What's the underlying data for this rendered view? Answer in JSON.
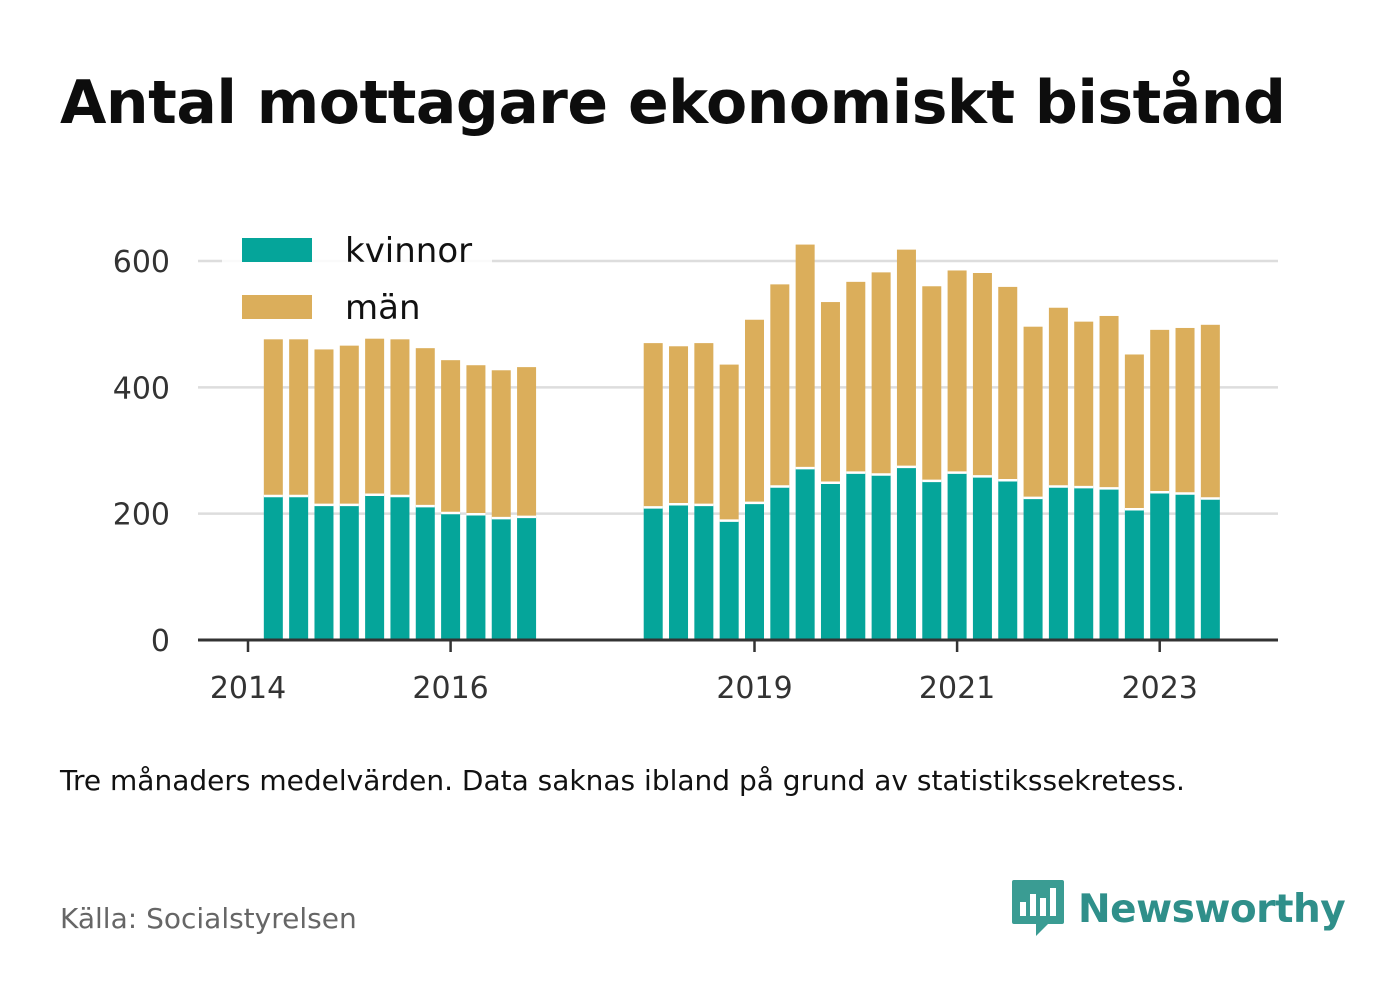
{
  "title": "Antal mottagare ekonomiskt bistånd",
  "note": "Tre månaders medelvärden. Data saknas ibland på grund av statistikssekretess.",
  "source": "Källa: Socialstyrelsen",
  "brand": {
    "name": "Newsworthy",
    "icon": "newsworthy-logo-icon",
    "color": "#2f8f8a"
  },
  "colors": {
    "kvinnor": "#05a59a",
    "man": "#dbae5b",
    "grid": "#dddddd",
    "axis": "#333333"
  },
  "chart_data": {
    "type": "bar",
    "stacked": true,
    "title": "Antal mottagare ekonomiskt bistånd",
    "xlabel": "",
    "ylabel": "",
    "ylim": [
      0,
      650
    ],
    "yticks": [
      0,
      200,
      400,
      600
    ],
    "xticks": [
      2014,
      2016,
      2019,
      2021,
      2023
    ],
    "grid": true,
    "legend": {
      "position": "top-left",
      "entries": [
        "kvinnor",
        "män"
      ]
    },
    "x": [
      2014.25,
      2014.5,
      2014.75,
      2015.0,
      2015.25,
      2015.5,
      2015.75,
      2016.0,
      2016.25,
      2016.5,
      2016.75,
      2018.0,
      2018.25,
      2018.5,
      2018.75,
      2019.0,
      2019.25,
      2019.5,
      2019.75,
      2020.0,
      2020.25,
      2020.5,
      2020.75,
      2021.0,
      2021.25,
      2021.5,
      2021.75,
      2022.0,
      2022.25,
      2022.5,
      2022.75,
      2023.0,
      2023.25,
      2023.5
    ],
    "series": [
      {
        "name": "kvinnor",
        "color": "#05a59a",
        "values": [
          228,
          228,
          214,
          214,
          230,
          228,
          212,
          201,
          199,
          193,
          195,
          210,
          215,
          214,
          189,
          217,
          243,
          272,
          249,
          265,
          262,
          274,
          252,
          265,
          259,
          253,
          225,
          243,
          242,
          240,
          207,
          234,
          232,
          224
        ]
      },
      {
        "name": "män",
        "color": "#dbae5b",
        "values": [
          248,
          248,
          246,
          252,
          247,
          248,
          250,
          242,
          236,
          234,
          237,
          260,
          250,
          256,
          247,
          290,
          320,
          354,
          286,
          302,
          320,
          344,
          308,
          320,
          322,
          306,
          271,
          283,
          262,
          273,
          245,
          257,
          262,
          275
        ]
      }
    ]
  }
}
